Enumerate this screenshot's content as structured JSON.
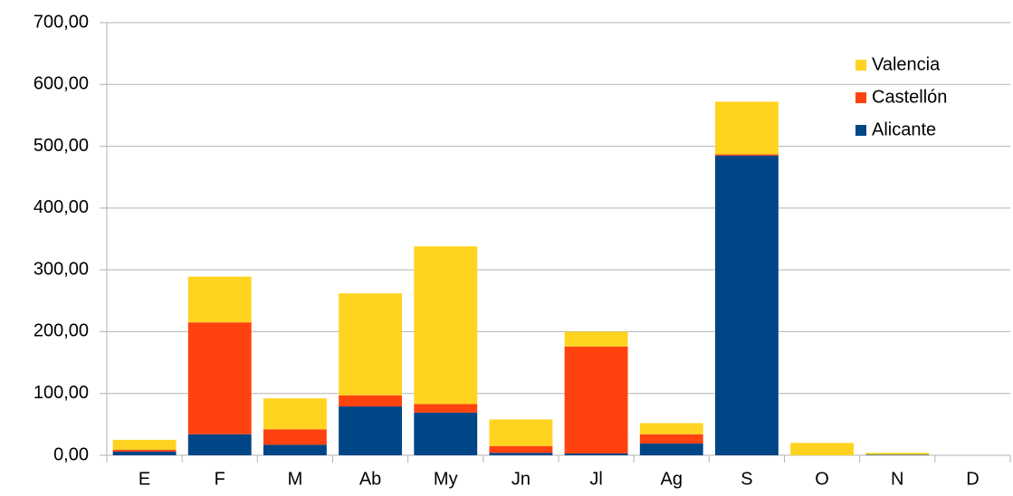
{
  "chart_data": {
    "type": "stacked-bar",
    "categories": [
      "E",
      "F",
      "M",
      "Ab",
      "My",
      "Jn",
      "Jl",
      "Ag",
      "S",
      "O",
      "N",
      "D"
    ],
    "series": [
      {
        "name": "Alicante",
        "color": "#004586",
        "values": [
          6,
          34,
          17,
          79,
          69,
          4,
          3,
          19,
          485,
          0,
          1,
          0
        ]
      },
      {
        "name": "Castellón",
        "color": "#ff420e",
        "values": [
          3,
          181,
          25,
          18,
          14,
          11,
          173,
          15,
          2,
          0,
          0,
          0
        ]
      },
      {
        "name": "Valencia",
        "color": "#ffd320",
        "values": [
          16,
          74,
          50,
          165,
          255,
          43,
          24,
          18,
          85,
          20,
          3,
          0
        ]
      }
    ],
    "ylim": [
      0,
      700
    ],
    "yticks": [
      {
        "value": 0,
        "label": "0,00"
      },
      {
        "value": 100,
        "label": "100,00"
      },
      {
        "value": 200,
        "label": "200,00"
      },
      {
        "value": 300,
        "label": "300,00"
      },
      {
        "value": 400,
        "label": "400,00"
      },
      {
        "value": 500,
        "label": "500,00"
      },
      {
        "value": 600,
        "label": "600,00"
      },
      {
        "value": 700,
        "label": "700,00"
      }
    ],
    "grid": true,
    "legend": "top-right"
  }
}
